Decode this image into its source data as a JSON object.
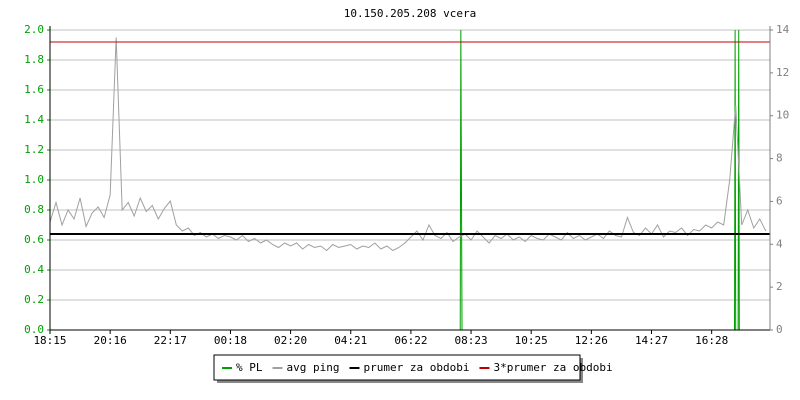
{
  "chart_data": {
    "type": "line",
    "title": "10.150.205.208 vcera",
    "grid": true,
    "ylim": [
      0,
      2.0
    ],
    "yticks": [
      {
        "value": 0,
        "label": "0.0"
      },
      {
        "value": 0.2,
        "label": "0.2"
      },
      {
        "value": 0.4,
        "label": "0.4"
      },
      {
        "value": 0.6,
        "label": "0.6"
      },
      {
        "value": 0.8,
        "label": "0.8"
      },
      {
        "value": 1.0,
        "label": "1.0"
      },
      {
        "value": 1.2,
        "label": "1.2"
      },
      {
        "value": 1.4,
        "label": "1.4"
      },
      {
        "value": 1.6,
        "label": "1.6"
      },
      {
        "value": 1.8,
        "label": "1.8"
      },
      {
        "value": 2.0,
        "label": "2.0"
      }
    ],
    "y2lim": [
      0,
      14
    ],
    "y2ticks": [
      0,
      2,
      4,
      6,
      8,
      10,
      12,
      14
    ],
    "xlim": [
      0,
      11.97
    ],
    "xticks": [
      {
        "value": 0,
        "label": "18:15"
      },
      {
        "value": 1,
        "label": "20:16"
      },
      {
        "value": 2,
        "label": "22:17"
      },
      {
        "value": 3,
        "label": "00:18"
      },
      {
        "value": 4,
        "label": "02:20"
      },
      {
        "value": 5,
        "label": "04:21"
      },
      {
        "value": 6,
        "label": "06:22"
      },
      {
        "value": 7,
        "label": "08:23"
      },
      {
        "value": 8,
        "label": "10:25"
      },
      {
        "value": 9,
        "label": "12:26"
      },
      {
        "value": 10,
        "label": "14:27"
      },
      {
        "value": 11,
        "label": "16:28"
      }
    ],
    "x": [
      0.0,
      0.1,
      0.2,
      0.3,
      0.4,
      0.5,
      0.6,
      0.7,
      0.8,
      0.9,
      1.0,
      1.1,
      1.2,
      1.3,
      1.4,
      1.5,
      1.6,
      1.7,
      1.8,
      1.9,
      2.0,
      2.1,
      2.2,
      2.3,
      2.4,
      2.5,
      2.6,
      2.7,
      2.8,
      2.9,
      3.0,
      3.1,
      3.2,
      3.3,
      3.4,
      3.5,
      3.6,
      3.7,
      3.8,
      3.9,
      4.0,
      4.1,
      4.2,
      4.3,
      4.4,
      4.5,
      4.6,
      4.7,
      4.8,
      4.9,
      5.0,
      5.1,
      5.2,
      5.3,
      5.4,
      5.5,
      5.6,
      5.7,
      5.8,
      5.9,
      6.0,
      6.1,
      6.2,
      6.3,
      6.4,
      6.5,
      6.6,
      6.7,
      6.8,
      6.9,
      7.0,
      7.1,
      7.2,
      7.3,
      7.4,
      7.5,
      7.6,
      7.7,
      7.8,
      7.9,
      8.0,
      8.1,
      8.2,
      8.3,
      8.4,
      8.5,
      8.6,
      8.7,
      8.8,
      8.9,
      9.0,
      9.1,
      9.2,
      9.3,
      9.4,
      9.5,
      9.6,
      9.7,
      9.8,
      9.9,
      10.0,
      10.1,
      10.2,
      10.3,
      10.4,
      10.5,
      10.6,
      10.7,
      10.8,
      10.9,
      11.0,
      11.1,
      11.2,
      11.3,
      11.4,
      11.5,
      11.6,
      11.7,
      11.8,
      11.9
    ],
    "series": [
      {
        "name": "% PL",
        "color": "#00a000",
        "axis": "y2",
        "x": [
          0,
          6.82,
          6.83,
          6.84,
          6.85,
          11.38,
          11.39,
          11.4,
          11.44,
          11.45,
          11.46,
          11.97
        ],
        "values": [
          0,
          0,
          14,
          7,
          0,
          0,
          14,
          0,
          0,
          14,
          0,
          0
        ]
      },
      {
        "name": "avg ping",
        "color": "#a0a0a0",
        "values": [
          0.72,
          0.85,
          0.7,
          0.8,
          0.74,
          0.88,
          0.69,
          0.78,
          0.82,
          0.75,
          0.9,
          1.95,
          0.8,
          0.85,
          0.76,
          0.88,
          0.79,
          0.83,
          0.74,
          0.81,
          0.86,
          0.7,
          0.66,
          0.68,
          0.63,
          0.65,
          0.62,
          0.64,
          0.61,
          0.63,
          0.62,
          0.6,
          0.63,
          0.59,
          0.61,
          0.58,
          0.6,
          0.57,
          0.55,
          0.58,
          0.56,
          0.58,
          0.54,
          0.57,
          0.55,
          0.56,
          0.53,
          0.57,
          0.55,
          0.56,
          0.57,
          0.54,
          0.56,
          0.55,
          0.58,
          0.54,
          0.56,
          0.53,
          0.55,
          0.58,
          0.62,
          0.66,
          0.6,
          0.7,
          0.63,
          0.61,
          0.65,
          0.59,
          0.62,
          0.64,
          0.6,
          0.66,
          0.62,
          0.58,
          0.63,
          0.61,
          0.64,
          0.6,
          0.62,
          0.59,
          0.63,
          0.61,
          0.6,
          0.64,
          0.62,
          0.6,
          0.65,
          0.61,
          0.63,
          0.6,
          0.62,
          0.64,
          0.61,
          0.66,
          0.63,
          0.62,
          0.75,
          0.65,
          0.63,
          0.68,
          0.64,
          0.7,
          0.62,
          0.66,
          0.65,
          0.68,
          0.63,
          0.67,
          0.66,
          0.7,
          0.68,
          0.72,
          0.7,
          1.0,
          1.5,
          0.7,
          0.8,
          0.68,
          0.74,
          0.66
        ]
      },
      {
        "name": "prumer za obdobi",
        "color": "#000000",
        "x": [
          0,
          11.97
        ],
        "values": [
          0.64,
          0.64
        ]
      },
      {
        "name": "3*prumer za obdobi",
        "color": "#c00000",
        "x": [
          0,
          11.97
        ],
        "values": [
          1.92,
          1.92
        ]
      }
    ]
  }
}
